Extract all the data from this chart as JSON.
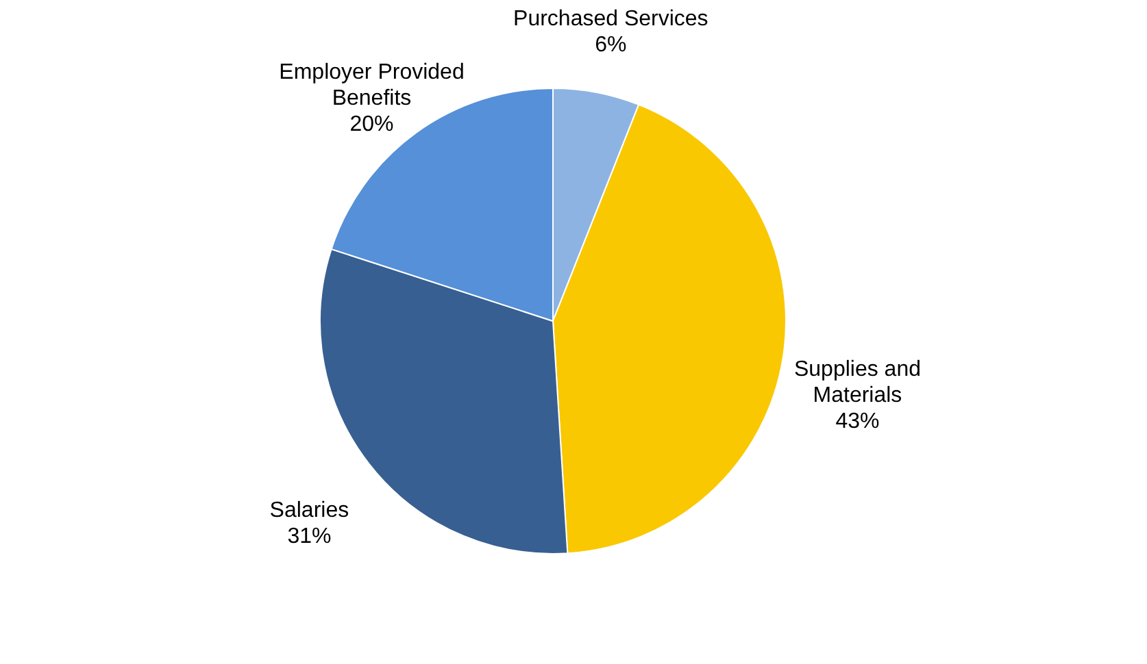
{
  "chart_data": {
    "type": "pie",
    "categories": [
      "Purchased Services",
      "Supplies and Materials",
      "Salaries",
      "Employer Provided Benefits"
    ],
    "values": [
      6,
      43,
      31,
      20
    ],
    "value_labels": [
      "6%",
      "43%",
      "31%",
      "20%"
    ],
    "colors": [
      "#8db3e2",
      "#f9c800",
      "#375f91",
      "#5590d8"
    ],
    "legend": false
  }
}
